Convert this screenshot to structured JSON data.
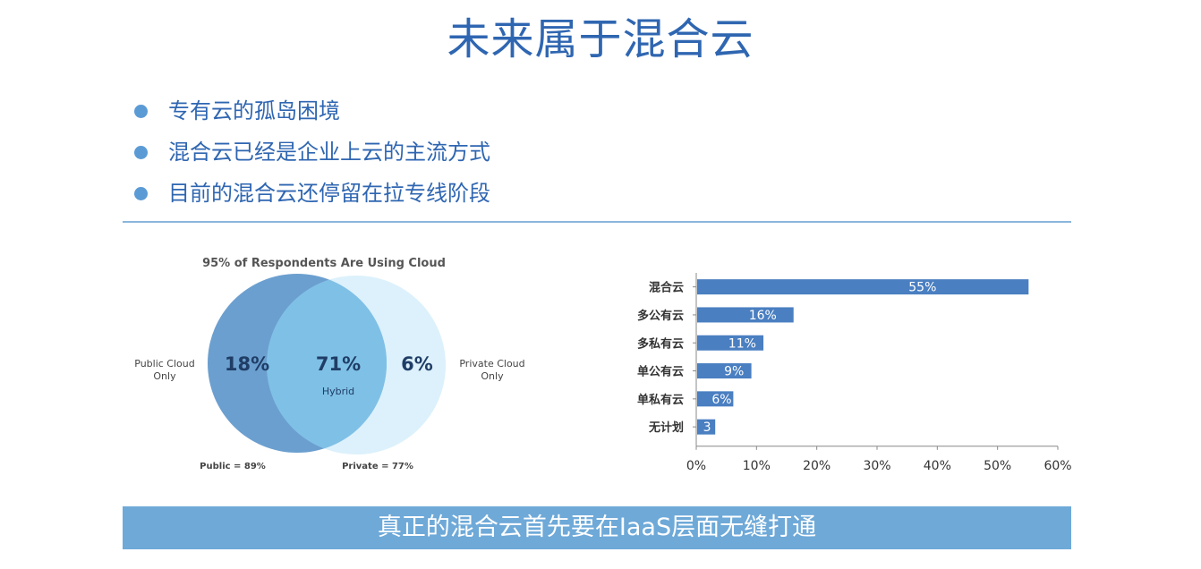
{
  "title": "未来属于混合云",
  "bullets": [
    "专有云的孤岛困境",
    "混合云已经是企业上云的主流方式",
    "目前的混合云还停留在拉专线阶段"
  ],
  "banner": "真正的混合云首先要在IaaS层面无缝打通",
  "colors": {
    "title": "#2f66b1",
    "bullet_dot": "#5b9bd5",
    "bar": "#4a7fc1",
    "banner": "#6ea9d8",
    "public_circle": "#6b9fcf",
    "private_circle": "#bfe6f8",
    "overlap": "#7fc0e6"
  },
  "chart_data": [
    {
      "type": "venn",
      "title": "95% of Respondents Are Using Cloud",
      "sets": [
        {
          "name": "Public Cloud Only",
          "value_label": "18%",
          "total_label": "Public = 89%"
        },
        {
          "name": "Private Cloud Only",
          "value_label": "6%",
          "total_label": "Private = 77%"
        }
      ],
      "overlap": {
        "value_label": "71%",
        "name": "Hybrid"
      }
    },
    {
      "type": "bar",
      "orientation": "horizontal",
      "categories": [
        "混合云",
        "多公有云",
        "多私有云",
        "单公有云",
        "单私有云",
        "无计划"
      ],
      "values": [
        55,
        16,
        11,
        9,
        6,
        3
      ],
      "value_labels": [
        "55%",
        "16%",
        "11%",
        "9%",
        "6%",
        "3"
      ],
      "xlim": [
        0,
        60
      ],
      "xticks": [
        "0%",
        "10%",
        "20%",
        "30%",
        "40%",
        "50%",
        "60%"
      ],
      "grid": false
    }
  ]
}
